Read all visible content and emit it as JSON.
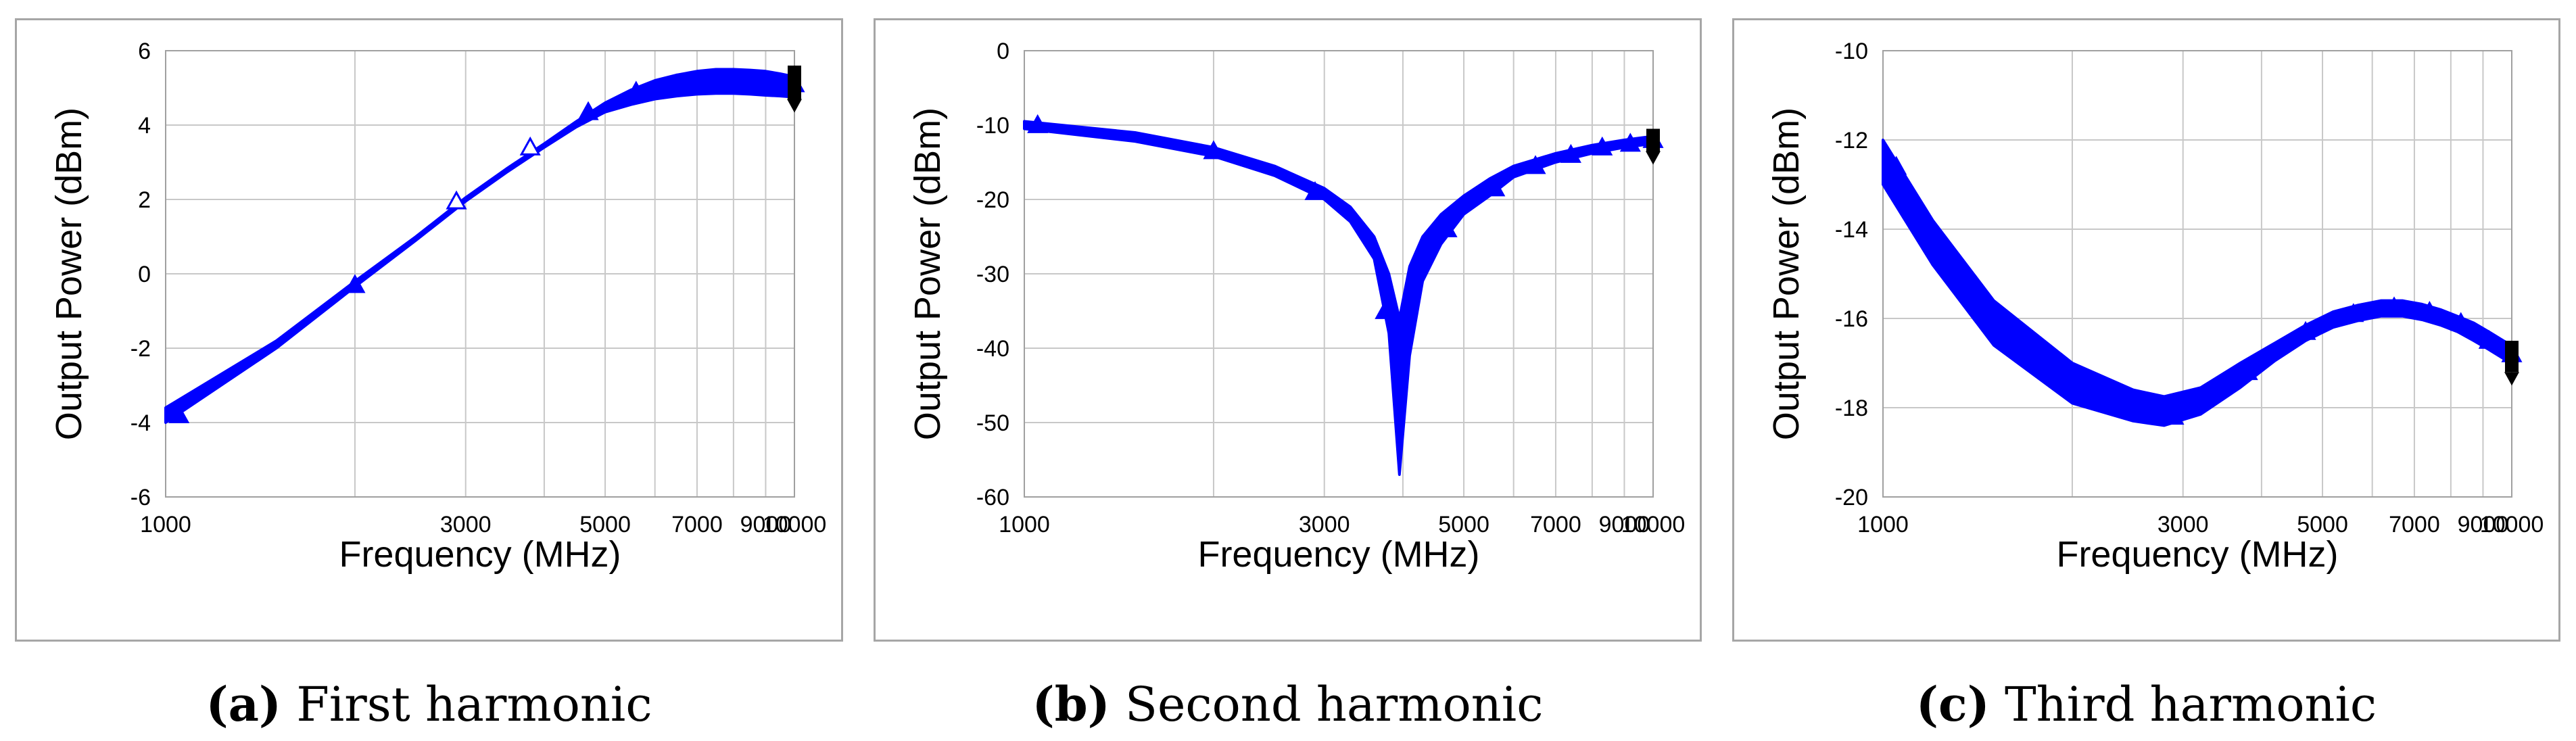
{
  "chart_data": [
    {
      "type": "line",
      "caption_tag": "(a)",
      "caption_text": "First harmonic",
      "xlabel": "Frequency (MHz)",
      "ylabel": "Output Power (dBm)",
      "xlim": [
        1000,
        10000
      ],
      "ylim": [
        -6,
        6
      ],
      "xticks": [
        1000,
        3000,
        5000,
        7000,
        9000,
        10000
      ],
      "yticks": [
        -6,
        -4,
        -2,
        0,
        2,
        4,
        6
      ],
      "x_scale": "log",
      "series": [
        {
          "name": "upper",
          "x": [
            1000,
            1500,
            2000,
            2500,
            3000,
            3500,
            4000,
            4500,
            5000,
            5500,
            6000,
            6500,
            7000,
            7500,
            8000,
            8500,
            9000,
            9500,
            10000
          ],
          "values": [
            -3.6,
            -1.8,
            -0.2,
            1.0,
            2.05,
            2.85,
            3.5,
            4.1,
            4.6,
            4.95,
            5.2,
            5.35,
            5.45,
            5.5,
            5.5,
            5.48,
            5.45,
            5.38,
            5.3
          ]
        },
        {
          "name": "lower",
          "x": [
            1000,
            1500,
            2000,
            2500,
            3000,
            3500,
            4000,
            4500,
            5000,
            5500,
            6000,
            6500,
            7000,
            7500,
            8000,
            8500,
            9000,
            9500,
            10000
          ],
          "values": [
            -4.0,
            -2.0,
            -0.35,
            0.9,
            1.95,
            2.75,
            3.4,
            3.95,
            4.35,
            4.55,
            4.7,
            4.78,
            4.83,
            4.85,
            4.85,
            4.83,
            4.8,
            4.78,
            4.75
          ]
        }
      ],
      "markers": [
        [
          1050,
          -3.8
        ],
        [
          2000,
          -0.3
        ],
        [
          2900,
          1.95
        ],
        [
          3800,
          3.4
        ],
        [
          4700,
          4.35
        ],
        [
          5600,
          4.9
        ],
        [
          6500,
          5.1
        ],
        [
          7400,
          5.2
        ],
        [
          8300,
          5.2
        ],
        [
          9200,
          5.05
        ],
        [
          10000,
          5.1
        ]
      ],
      "end_cap": {
        "x": 10000,
        "ymin": 4.7,
        "ymax": 5.6
      }
    },
    {
      "type": "line",
      "caption_tag": "(b)",
      "caption_text": "Second harmonic",
      "xlabel": "Frequency (MHz)",
      "ylabel": "Output Power (dBm)",
      "xlim": [
        1000,
        10000
      ],
      "ylim": [
        -60,
        0
      ],
      "xticks": [
        1000,
        3000,
        5000,
        7000,
        9000,
        10000
      ],
      "yticks": [
        -60,
        -50,
        -40,
        -30,
        -20,
        -10,
        0
      ],
      "x_scale": "log",
      "series": [
        {
          "name": "upper",
          "x": [
            1000,
            1500,
            2000,
            2500,
            3000,
            3300,
            3600,
            3800,
            3950,
            4100,
            4300,
            4600,
            5000,
            5500,
            6000,
            7000,
            8000,
            9000,
            10000
          ],
          "values": [
            -9.5,
            -11,
            -13,
            -15.5,
            -18.5,
            -21,
            -25,
            -30,
            -36,
            -29,
            -25,
            -22,
            -19.5,
            -17.2,
            -15.5,
            -13.8,
            -12.7,
            -12,
            -11.5
          ]
        },
        {
          "name": "lower",
          "x": [
            1000,
            1500,
            2000,
            2500,
            3000,
            3300,
            3600,
            3800,
            3950,
            4100,
            4300,
            4600,
            5000,
            5500,
            6000,
            7000,
            8000,
            9000,
            10000
          ],
          "values": [
            -10.5,
            -12.2,
            -14.2,
            -16.8,
            -20,
            -23,
            -28,
            -38,
            -57,
            -41,
            -31,
            -26,
            -22,
            -19.5,
            -17,
            -15,
            -13.8,
            -13,
            -12.5
          ]
        }
      ],
      "markers": [
        [
          1050,
          -10
        ],
        [
          2000,
          -13.5
        ],
        [
          2900,
          -19
        ],
        [
          3750,
          -35
        ],
        [
          4700,
          -24
        ],
        [
          5600,
          -18.5
        ],
        [
          6500,
          -15.5
        ],
        [
          7400,
          -14
        ],
        [
          8300,
          -13
        ],
        [
          9200,
          -12.5
        ],
        [
          10000,
          -12
        ]
      ],
      "end_cap": {
        "x": 10000,
        "ymin": -13.5,
        "ymax": -10.5
      }
    },
    {
      "type": "line",
      "caption_tag": "(c)",
      "caption_text": "Third harmonic",
      "xlabel": "Frequency (MHz)",
      "ylabel": "Output Power (dBm)",
      "xlim": [
        1000,
        10000
      ],
      "ylim": [
        -20,
        -10
      ],
      "xticks": [
        1000,
        3000,
        5000,
        7000,
        9000,
        10000
      ],
      "yticks": [
        -20,
        -18,
        -16,
        -14,
        -12,
        -10
      ],
      "x_scale": "log",
      "series": [
        {
          "name": "upper",
          "x": [
            1000,
            1200,
            1500,
            2000,
            2500,
            2800,
            3200,
            3700,
            4200,
            4700,
            5200,
            5700,
            6200,
            6700,
            7200,
            7700,
            8200,
            8700,
            9200,
            9700,
            10000
          ],
          "values": [
            -12.0,
            -13.8,
            -15.6,
            -17.0,
            -17.6,
            -17.75,
            -17.55,
            -17.0,
            -16.55,
            -16.15,
            -15.85,
            -15.7,
            -15.6,
            -15.6,
            -15.68,
            -15.8,
            -15.95,
            -16.1,
            -16.3,
            -16.5,
            -16.6
          ]
        },
        {
          "name": "lower",
          "x": [
            1000,
            1200,
            1500,
            2000,
            2500,
            2800,
            3200,
            3700,
            4200,
            4700,
            5200,
            5700,
            6200,
            6700,
            7200,
            7700,
            8200,
            8700,
            9200,
            9700,
            10000
          ],
          "values": [
            -13.0,
            -14.8,
            -16.6,
            -17.9,
            -18.3,
            -18.4,
            -18.15,
            -17.55,
            -16.95,
            -16.5,
            -16.2,
            -16.05,
            -15.95,
            -15.95,
            -16.03,
            -16.15,
            -16.3,
            -16.5,
            -16.7,
            -16.9,
            -17.0
          ]
        }
      ],
      "markers": [
        [
          1050,
          -12.6
        ],
        [
          2000,
          -17.2
        ],
        [
          2900,
          -18.2
        ],
        [
          3800,
          -17.2
        ],
        [
          4700,
          -16.3
        ],
        [
          5600,
          -15.9
        ],
        [
          6500,
          -15.75
        ],
        [
          7400,
          -15.85
        ],
        [
          8300,
          -16.1
        ],
        [
          9200,
          -16.5
        ],
        [
          10000,
          -16.8
        ]
      ],
      "end_cap": {
        "x": 10000,
        "ymin": -17.2,
        "ymax": -16.5
      }
    }
  ],
  "colors": {
    "series": "#0000ff",
    "end_cap": "#000000",
    "grid": "#c8c8c8",
    "frame": "#a6a6a6",
    "marker_outline": "#0000ff"
  }
}
